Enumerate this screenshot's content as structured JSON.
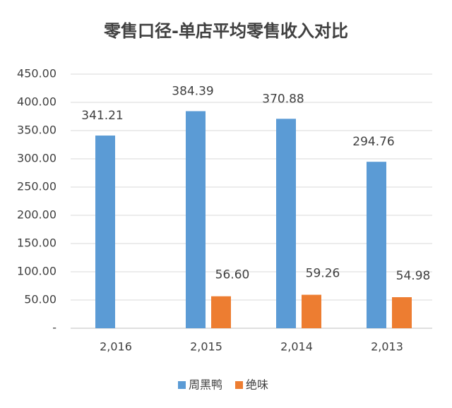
{
  "chart_data": {
    "type": "bar",
    "title": "零售口径-单店平均零售收入对比",
    "categories": [
      "2,016",
      "2,015",
      "2,014",
      "2,013"
    ],
    "series": [
      {
        "name": "周黑鸭",
        "color": "#5b9bd5",
        "values": [
          341.21,
          384.39,
          370.88,
          294.76
        ],
        "value_labels": [
          "341.21",
          "384.39",
          "370.88",
          "294.76"
        ]
      },
      {
        "name": "绝味",
        "color": "#ed7d31",
        "values": [
          null,
          56.6,
          59.26,
          54.98
        ],
        "value_labels": [
          null,
          "56.60",
          "59.26",
          "54.98"
        ]
      }
    ],
    "ylim": [
      0,
      450
    ],
    "yticks": [
      {
        "value": 0,
        "label": "-"
      },
      {
        "value": 50,
        "label": "50.00"
      },
      {
        "value": 100,
        "label": "100.00"
      },
      {
        "value": 150,
        "label": "150.00"
      },
      {
        "value": 200,
        "label": "200.00"
      },
      {
        "value": 250,
        "label": "250.00"
      },
      {
        "value": 300,
        "label": "300.00"
      },
      {
        "value": 350,
        "label": "350.00"
      },
      {
        "value": 400,
        "label": "400.00"
      },
      {
        "value": 450,
        "label": "450.00"
      }
    ],
    "grid": true
  }
}
